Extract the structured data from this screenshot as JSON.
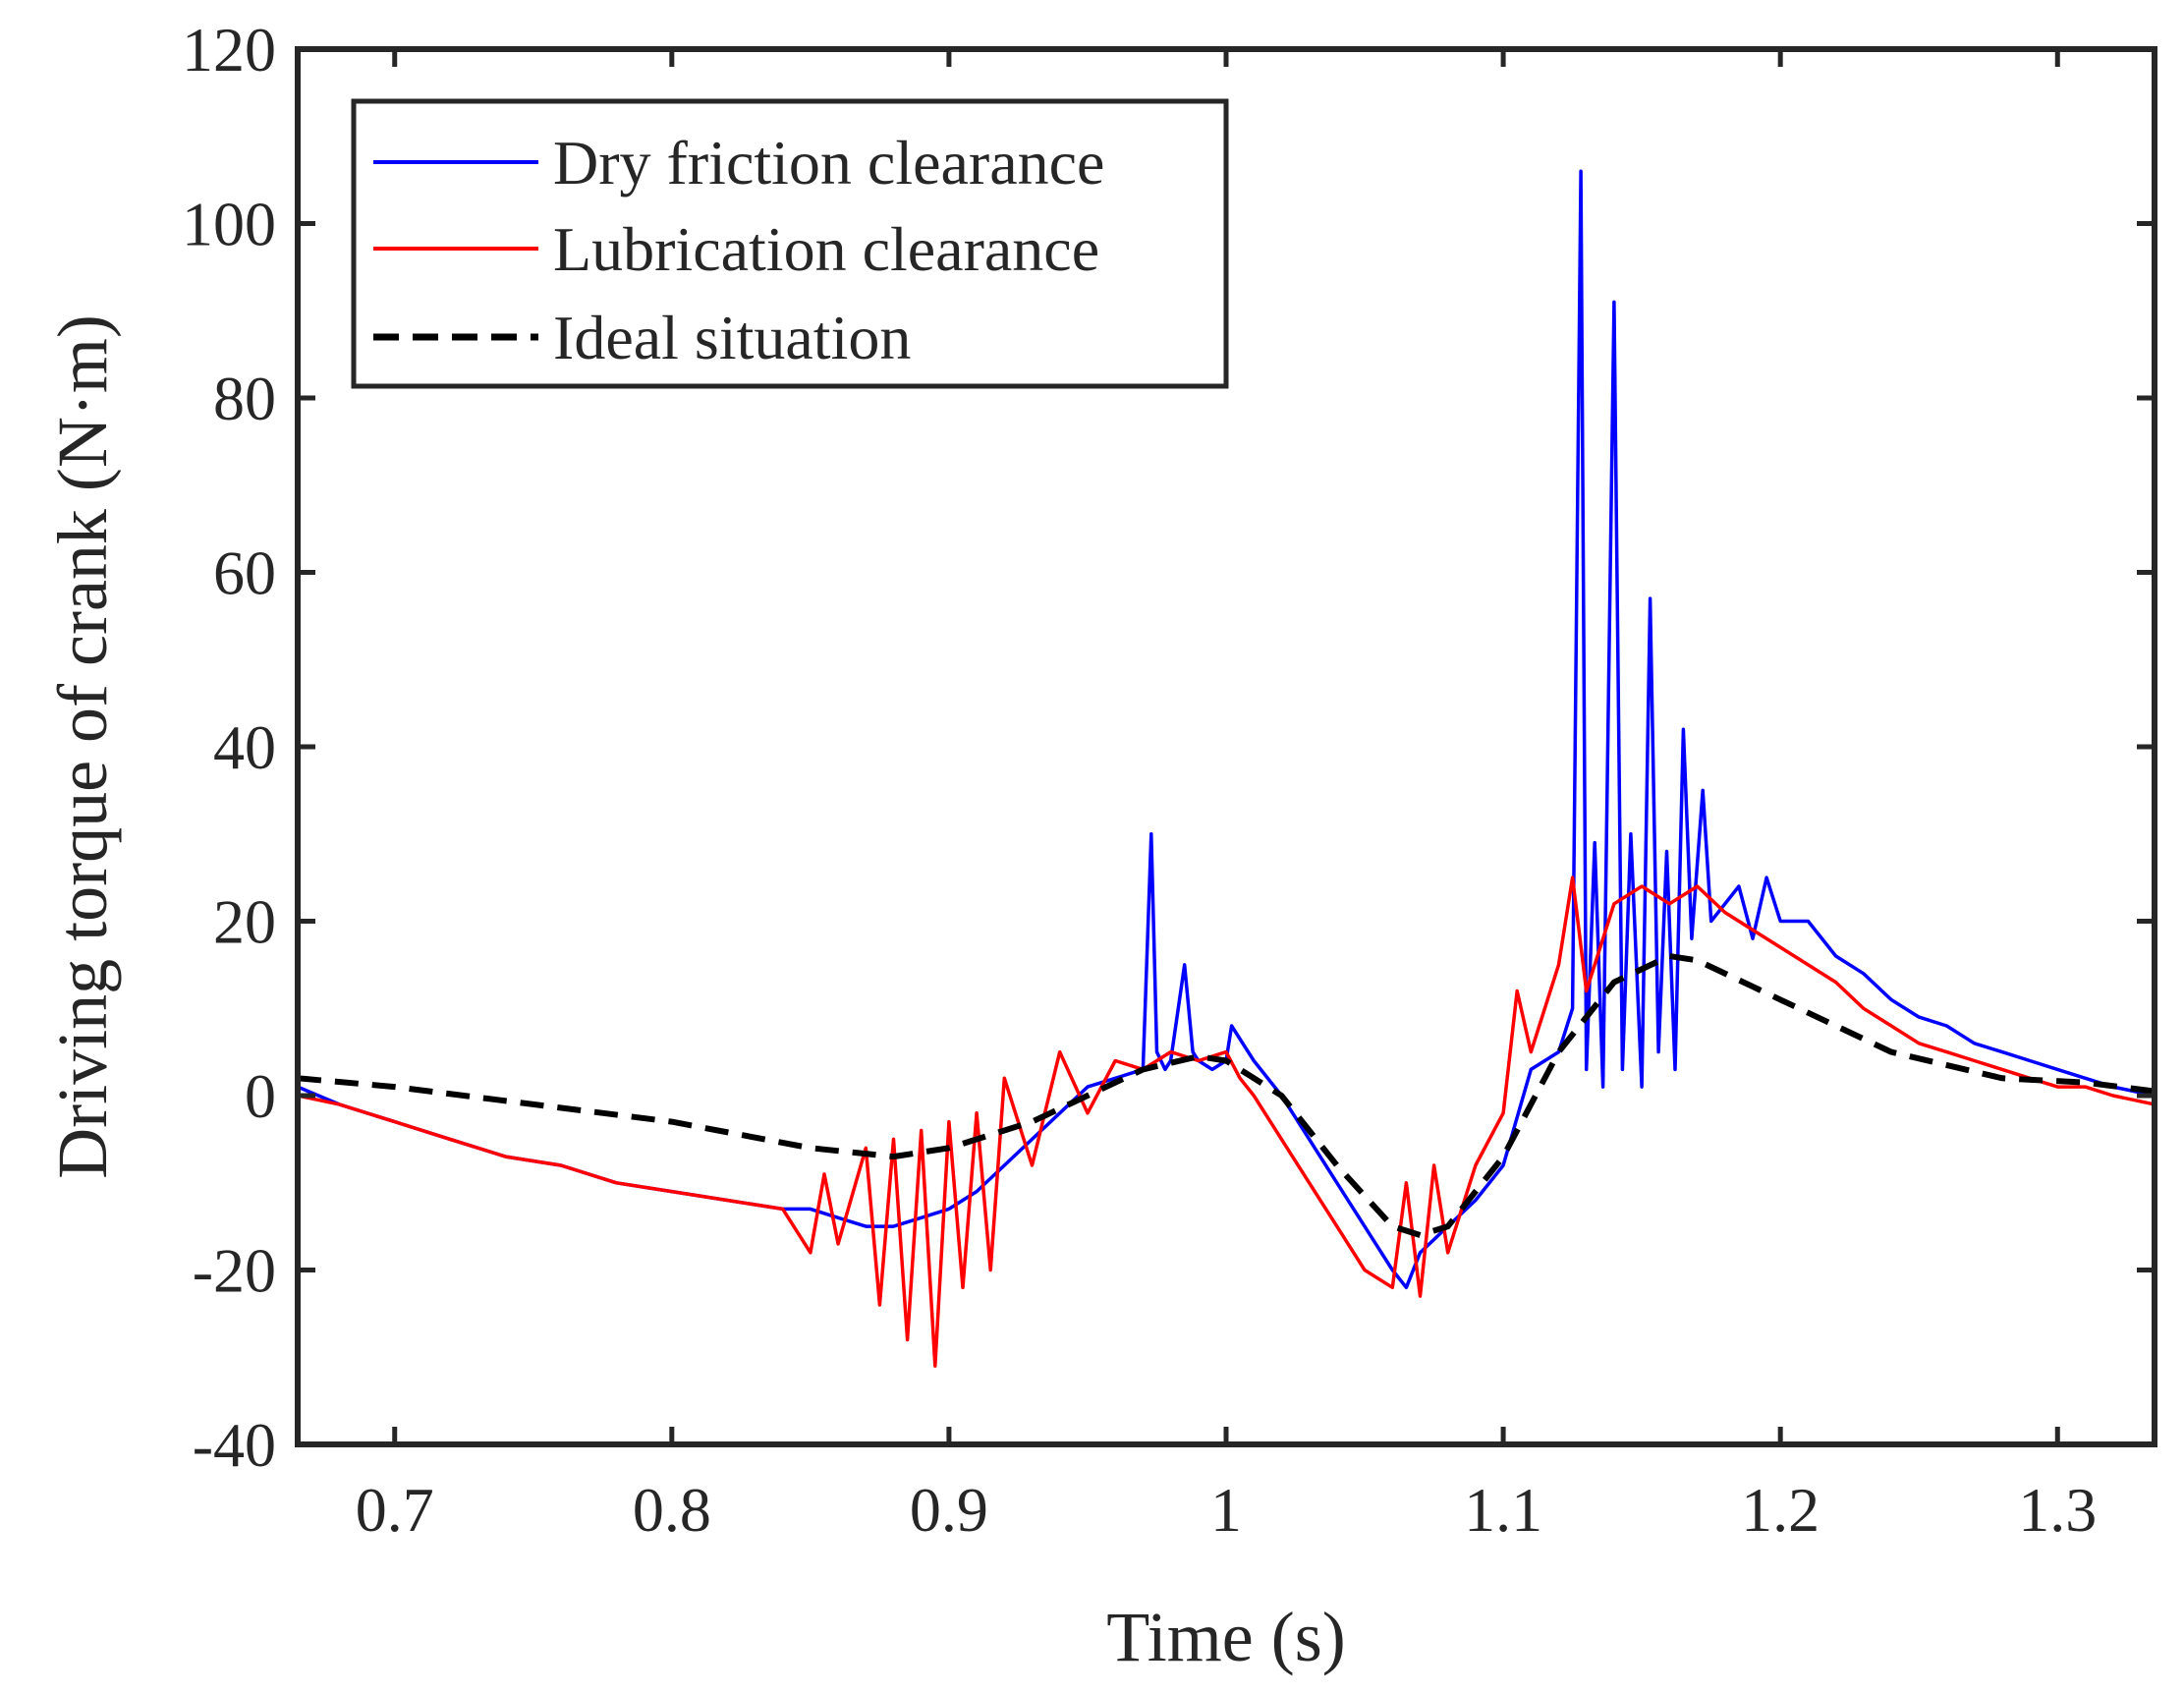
{
  "chart_data": {
    "type": "line",
    "title": "",
    "xlabel": "Time (s)",
    "ylabel": "Driving torque of crank (N·m)",
    "xlim": [
      0.665,
      1.335
    ],
    "ylim": [
      -40,
      120
    ],
    "xticks": [
      0.7,
      0.8,
      0.9,
      1.0,
      1.1,
      1.2,
      1.3
    ],
    "xtick_labels": [
      "0.7",
      "0.8",
      "0.9",
      "1",
      "1.1",
      "1.2",
      "1.3"
    ],
    "yticks": [
      -40,
      -20,
      0,
      20,
      40,
      60,
      80,
      100,
      120
    ],
    "ytick_labels": [
      "-40",
      "-20",
      "0",
      "20",
      "40",
      "60",
      "80",
      "100",
      "120"
    ],
    "grid": false,
    "legend_position": "top-left",
    "series": [
      {
        "name": "Dry friction clearance",
        "color": "#0000ff",
        "style": "solid",
        "x": [
          0.665,
          0.68,
          0.7,
          0.72,
          0.74,
          0.76,
          0.78,
          0.8,
          0.82,
          0.84,
          0.85,
          0.86,
          0.87,
          0.88,
          0.89,
          0.9,
          0.91,
          0.92,
          0.93,
          0.94,
          0.95,
          0.96,
          0.97,
          0.973,
          0.975,
          0.978,
          0.98,
          0.985,
          0.988,
          0.99,
          0.995,
          1.0,
          1.002,
          1.01,
          1.02,
          1.03,
          1.04,
          1.05,
          1.06,
          1.065,
          1.07,
          1.08,
          1.09,
          1.1,
          1.11,
          1.12,
          1.125,
          1.128,
          1.13,
          1.133,
          1.136,
          1.14,
          1.143,
          1.146,
          1.15,
          1.153,
          1.156,
          1.159,
          1.162,
          1.165,
          1.168,
          1.172,
          1.175,
          1.18,
          1.185,
          1.19,
          1.195,
          1.2,
          1.21,
          1.22,
          1.23,
          1.24,
          1.25,
          1.26,
          1.27,
          1.28,
          1.29,
          1.3,
          1.31,
          1.32,
          1.335
        ],
        "values": [
          1,
          -1,
          -3,
          -5,
          -7,
          -8,
          -10,
          -11,
          -12,
          -13,
          -13,
          -14,
          -15,
          -15,
          -14,
          -13,
          -11,
          -8,
          -5,
          -2,
          1,
          2,
          3,
          30,
          5,
          3,
          4,
          15,
          5,
          4,
          3,
          4,
          8,
          4,
          0,
          -5,
          -10,
          -15,
          -20,
          -22,
          -18,
          -15,
          -12,
          -8,
          3,
          5,
          10,
          106,
          3,
          29,
          1,
          91,
          3,
          30,
          1,
          57,
          5,
          28,
          3,
          42,
          18,
          35,
          20,
          22,
          24,
          18,
          25,
          20,
          20,
          16,
          14,
          11,
          9,
          8,
          6,
          5,
          4,
          3,
          2,
          1,
          0
        ]
      },
      {
        "name": "Lubrication clearance",
        "color": "#ff0000",
        "style": "solid",
        "x": [
          0.665,
          0.68,
          0.7,
          0.72,
          0.74,
          0.76,
          0.78,
          0.8,
          0.82,
          0.84,
          0.85,
          0.855,
          0.86,
          0.87,
          0.875,
          0.88,
          0.885,
          0.89,
          0.895,
          0.9,
          0.905,
          0.91,
          0.915,
          0.92,
          0.93,
          0.94,
          0.95,
          0.96,
          0.97,
          0.98,
          0.99,
          1.0,
          1.005,
          1.01,
          1.02,
          1.03,
          1.04,
          1.05,
          1.06,
          1.065,
          1.07,
          1.075,
          1.08,
          1.09,
          1.1,
          1.105,
          1.11,
          1.12,
          1.125,
          1.13,
          1.14,
          1.15,
          1.16,
          1.17,
          1.18,
          1.19,
          1.2,
          1.21,
          1.22,
          1.23,
          1.24,
          1.25,
          1.26,
          1.27,
          1.28,
          1.29,
          1.3,
          1.31,
          1.32,
          1.335
        ],
        "values": [
          0,
          -1,
          -3,
          -5,
          -7,
          -8,
          -10,
          -11,
          -12,
          -13,
          -18,
          -9,
          -17,
          -6,
          -24,
          -5,
          -28,
          -4,
          -31,
          -3,
          -22,
          -2,
          -20,
          2,
          -8,
          5,
          -2,
          4,
          3,
          5,
          4,
          5,
          2,
          0,
          -5,
          -10,
          -15,
          -20,
          -22,
          -10,
          -23,
          -8,
          -18,
          -8,
          -2,
          12,
          5,
          15,
          25,
          12,
          22,
          24,
          22,
          24,
          21,
          19,
          17,
          15,
          13,
          10,
          8,
          6,
          5,
          4,
          3,
          2,
          1,
          1,
          0,
          -1
        ]
      },
      {
        "name": "Ideal situation",
        "color": "#000000",
        "style": "dashed",
        "x": [
          0.665,
          0.7,
          0.75,
          0.8,
          0.85,
          0.88,
          0.9,
          0.93,
          0.95,
          0.97,
          0.99,
          1.0,
          1.02,
          1.04,
          1.06,
          1.07,
          1.08,
          1.1,
          1.12,
          1.14,
          1.16,
          1.17,
          1.2,
          1.24,
          1.28,
          1.31,
          1.335
        ],
        "values": [
          2,
          1,
          -1,
          -3,
          -6,
          -7,
          -6,
          -3,
          0,
          3,
          4.5,
          4,
          0,
          -8,
          -15,
          -16,
          -15,
          -7,
          5,
          13,
          16,
          15.5,
          11,
          5,
          2,
          1.5,
          0.5
        ]
      }
    ]
  }
}
